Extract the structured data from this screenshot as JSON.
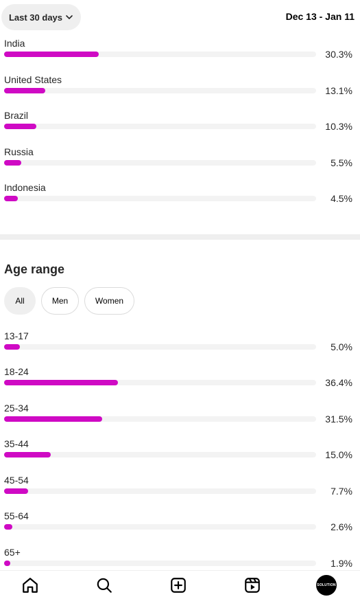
{
  "header": {
    "period_label": "Last 30 days",
    "date_range": "Dec 13 - Jan 11"
  },
  "countries": [
    {
      "label": "India",
      "pct": "30.3%",
      "value": 30.3
    },
    {
      "label": "United States",
      "pct": "13.1%",
      "value": 13.1
    },
    {
      "label": "Brazil",
      "pct": "10.3%",
      "value": 10.3
    },
    {
      "label": "Russia",
      "pct": "5.5%",
      "value": 5.5
    },
    {
      "label": "Indonesia",
      "pct": "4.5%",
      "value": 4.5
    }
  ],
  "age_section": {
    "title": "Age range",
    "filters": [
      {
        "label": "All",
        "active": true
      },
      {
        "label": "Men",
        "active": false
      },
      {
        "label": "Women",
        "active": false
      }
    ],
    "rows": [
      {
        "label": "13-17",
        "pct": "5.0%",
        "value": 5.0
      },
      {
        "label": "18-24",
        "pct": "36.4%",
        "value": 36.4
      },
      {
        "label": "25-34",
        "pct": "31.5%",
        "value": 31.5
      },
      {
        "label": "35-44",
        "pct": "15.0%",
        "value": 15.0
      },
      {
        "label": "45-54",
        "pct": "7.7%",
        "value": 7.7
      },
      {
        "label": "55-64",
        "pct": "2.6%",
        "value": 2.6
      },
      {
        "label": "65+",
        "pct": "1.9%",
        "value": 1.9
      }
    ]
  },
  "colors": {
    "bar_fill": "#cf0ac4",
    "track": "#f3f3f3"
  },
  "nav": {
    "items": [
      "home-icon",
      "search-icon",
      "create-icon",
      "reels-icon",
      "profile-avatar"
    ],
    "avatar_text": "SOLUTION"
  }
}
